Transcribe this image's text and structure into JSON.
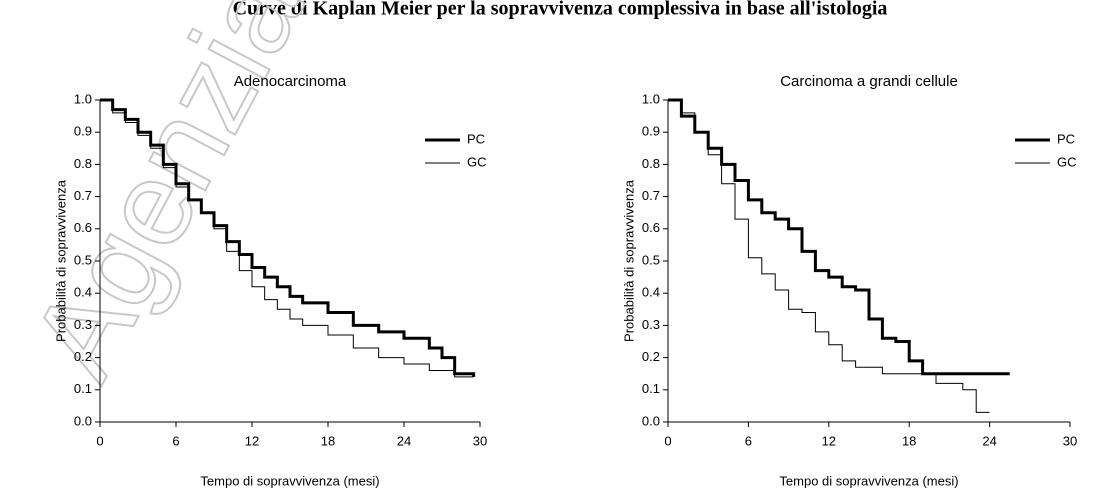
{
  "title": "Curve di Kaplan Meier per la sopravvivenza complessiva in base all'istologia",
  "watermark": "Agenzia",
  "chart_data": [
    {
      "type": "step",
      "title": "Adenocarcinoma",
      "x_label": "Tempo di sopravvivenza (mesi)",
      "y_label": "Probabilità di sopravvivenza",
      "xlim": [
        0,
        30
      ],
      "xticks": [
        0,
        6,
        12,
        18,
        24,
        30
      ],
      "ylim": [
        0,
        1
      ],
      "yticks": [
        {
          "value": 0,
          "label": "0.0"
        },
        0.1,
        0.2,
        0.3,
        0.4,
        0.5,
        0.6,
        0.7,
        0.8,
        0.9,
        {
          "value": 1,
          "label": "1.0"
        }
      ],
      "legend": "upper right",
      "series": [
        {
          "name": "PC",
          "color": "#000000",
          "line_width": 3,
          "x": [
            0,
            1,
            2,
            3,
            4,
            5,
            6,
            7,
            8,
            9,
            10,
            11,
            12,
            13,
            14,
            15,
            16,
            18,
            20,
            22,
            24,
            26,
            27,
            28,
            29.5
          ],
          "values": [
            1,
            0.97,
            0.94,
            0.9,
            0.86,
            0.8,
            0.74,
            0.69,
            0.65,
            0.61,
            0.56,
            0.52,
            0.48,
            0.45,
            0.42,
            0.39,
            0.37,
            0.34,
            0.3,
            0.28,
            0.26,
            0.23,
            0.2,
            0.15,
            0.14
          ]
        },
        {
          "name": "GC",
          "color": "#000000",
          "line_width": 1,
          "x": [
            0,
            1,
            2,
            3,
            4,
            5,
            6,
            7,
            8,
            9,
            10,
            11,
            12,
            13,
            14,
            15,
            16,
            18,
            20,
            22,
            24,
            26,
            28,
            29.5
          ],
          "values": [
            1,
            0.96,
            0.93,
            0.89,
            0.85,
            0.79,
            0.73,
            0.69,
            0.65,
            0.6,
            0.53,
            0.47,
            0.42,
            0.38,
            0.35,
            0.32,
            0.3,
            0.27,
            0.23,
            0.2,
            0.18,
            0.16,
            0.14,
            0.14
          ]
        }
      ]
    },
    {
      "type": "step",
      "title": "Carcinoma a grandi cellule",
      "x_label": "Tempo di sopravvivenza (mesi)",
      "y_label": "Probabilità di sopravvivenza",
      "xlim": [
        0,
        30
      ],
      "xticks": [
        0,
        6,
        12,
        18,
        24,
        30
      ],
      "ylim": [
        0,
        1
      ],
      "yticks": [
        {
          "value": 0,
          "label": "0.0"
        },
        0.1,
        0.2,
        0.3,
        0.4,
        0.5,
        0.6,
        0.7,
        0.8,
        0.9,
        {
          "value": 1,
          "label": "1.0"
        }
      ],
      "legend": "upper right",
      "series": [
        {
          "name": "PC",
          "color": "#000000",
          "line_width": 3,
          "x": [
            0,
            1,
            2,
            3,
            4,
            5,
            6,
            7,
            8,
            9,
            10,
            11,
            12,
            13,
            14,
            15,
            16,
            17,
            18,
            19,
            25.5
          ],
          "values": [
            1,
            0.95,
            0.9,
            0.85,
            0.8,
            0.75,
            0.69,
            0.65,
            0.63,
            0.6,
            0.53,
            0.47,
            0.45,
            0.42,
            0.41,
            0.32,
            0.26,
            0.25,
            0.19,
            0.15,
            0.15
          ]
        },
        {
          "name": "GC",
          "color": "#000000",
          "line_width": 1,
          "x": [
            0,
            1,
            2,
            3,
            4,
            5,
            6,
            7,
            8,
            9,
            10,
            11,
            12,
            13,
            14,
            16,
            18,
            20,
            22,
            23,
            24
          ],
          "values": [
            1,
            0.96,
            0.9,
            0.83,
            0.74,
            0.63,
            0.51,
            0.46,
            0.41,
            0.35,
            0.34,
            0.28,
            0.24,
            0.19,
            0.17,
            0.15,
            0.15,
            0.12,
            0.1,
            0.03,
            0.03
          ]
        }
      ]
    }
  ]
}
